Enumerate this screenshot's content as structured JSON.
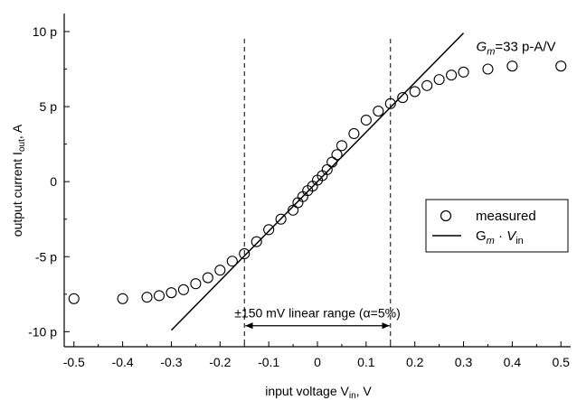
{
  "chart_data": {
    "type": "scatter",
    "xlabel": "input voltage V",
    "xlabel_sub": "in",
    "xlabel_unit": ", V",
    "ylabel": "output current I",
    "ylabel_sub": "out",
    "ylabel_unit": ", A",
    "xlim": [
      -0.52,
      0.52
    ],
    "ylim": [
      -11,
      11.2
    ],
    "x_ticks": [
      {
        "v": -0.5,
        "label": "-0.5"
      },
      {
        "v": -0.4,
        "label": "-0.4"
      },
      {
        "v": -0.3,
        "label": "-0.3"
      },
      {
        "v": -0.2,
        "label": "-0.2"
      },
      {
        "v": -0.1,
        "label": "-0.1"
      },
      {
        "v": 0,
        "label": "0"
      },
      {
        "v": 0.1,
        "label": "0.1"
      },
      {
        "v": 0.2,
        "label": "0.2"
      },
      {
        "v": 0.3,
        "label": "0.3"
      },
      {
        "v": 0.4,
        "label": "0.4"
      },
      {
        "v": 0.5,
        "label": "0.5"
      }
    ],
    "y_ticks": [
      {
        "v": -10,
        "label": "-10 p"
      },
      {
        "v": -5,
        "label": "-5 p"
      },
      {
        "v": 0,
        "label": "0"
      },
      {
        "v": 5,
        "label": "5 p"
      },
      {
        "v": 10,
        "label": "10 p"
      }
    ],
    "series": [
      {
        "name": "measured",
        "marker": "open-circle",
        "x": [
          -0.5,
          -0.4,
          -0.35,
          -0.325,
          -0.3,
          -0.275,
          -0.25,
          -0.225,
          -0.2,
          -0.175,
          -0.15,
          -0.125,
          -0.1,
          -0.075,
          -0.05,
          -0.04,
          -0.03,
          -0.02,
          -0.01,
          0,
          0.01,
          0.02,
          0.03,
          0.04,
          0.05,
          0.075,
          0.1,
          0.125,
          0.15,
          0.175,
          0.2,
          0.225,
          0.25,
          0.275,
          0.3,
          0.35,
          0.4,
          0.5
        ],
        "y": [
          -7.8,
          -7.8,
          -7.7,
          -7.6,
          -7.4,
          -7.2,
          -6.8,
          -6.4,
          -5.9,
          -5.3,
          -4.8,
          -4.0,
          -3.2,
          -2.5,
          -1.9,
          -1.4,
          -1.0,
          -0.6,
          -0.3,
          0.1,
          0.4,
          0.8,
          1.3,
          1.8,
          2.4,
          3.2,
          4.1,
          4.7,
          5.2,
          5.6,
          6.0,
          6.4,
          6.8,
          7.1,
          7.3,
          7.5,
          7.7,
          7.7
        ]
      },
      {
        "name": "G_m · V_in",
        "type": "line",
        "x": [
          -0.3,
          0.3
        ],
        "y": [
          -9.9,
          9.9
        ]
      }
    ],
    "vlines": [
      -0.15,
      0.15
    ],
    "annotations": {
      "gm_label_var": "G",
      "gm_label_sub": "m",
      "gm_label_value": "=33 p-A/V",
      "range_label": "±150 mV linear range (α=5%)",
      "range_from": -0.15,
      "range_to": 0.15,
      "range_y": -9.6
    },
    "legend": {
      "position": "right",
      "measured_label": "measured",
      "fit_label_var": "G",
      "fit_label_sub": "m",
      "fit_label_dot": " · ",
      "fit_label_var2": "V",
      "fit_label_sub2": "in"
    },
    "grid": false
  }
}
